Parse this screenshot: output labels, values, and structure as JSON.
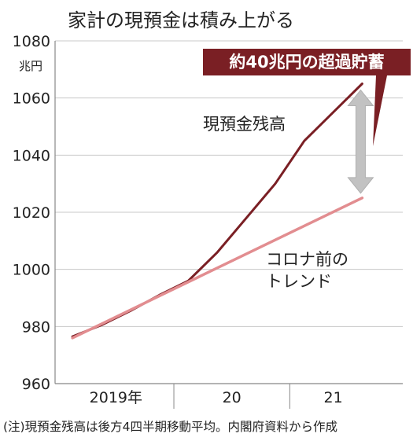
{
  "chart_data": {
    "type": "line",
    "title": "家計の現預金は積み上がる",
    "unit_label": "兆円",
    "ylim": [
      960,
      1080
    ],
    "yticks": [
      "960",
      "980",
      "1000",
      "1020",
      "1040",
      "1060",
      "1080"
    ],
    "x_tick_labels": [
      "2019年",
      "20",
      "21"
    ],
    "grid": "horizontal",
    "series": [
      {
        "name": "現預金残高",
        "color": "#7a1f24",
        "points": [
          {
            "x": 2019.0,
            "y": 976.5
          },
          {
            "x": 2019.25,
            "y": 980.5
          },
          {
            "x": 2019.5,
            "y": 985.5
          },
          {
            "x": 2019.75,
            "y": 991
          },
          {
            "x": 2020.0,
            "y": 996
          },
          {
            "x": 2020.25,
            "y": 1006
          },
          {
            "x": 2020.5,
            "y": 1018
          },
          {
            "x": 2020.75,
            "y": 1030
          },
          {
            "x": 2021.0,
            "y": 1045
          },
          {
            "x": 2021.25,
            "y": 1055
          },
          {
            "x": 2021.5,
            "y": 1065
          }
        ]
      },
      {
        "name": "コロナ前のトレンド",
        "name_lines": [
          "コロナ前の",
          "トレンド"
        ],
        "color": "#e28d90",
        "points": [
          {
            "x": 2019.0,
            "y": 976
          },
          {
            "x": 2021.5,
            "y": 1025
          }
        ]
      }
    ],
    "annotation": "約40兆円の超過貯蓄",
    "note": "(注)現預金残高は後方4四半期移動平均。内閣府資料から作成"
  }
}
